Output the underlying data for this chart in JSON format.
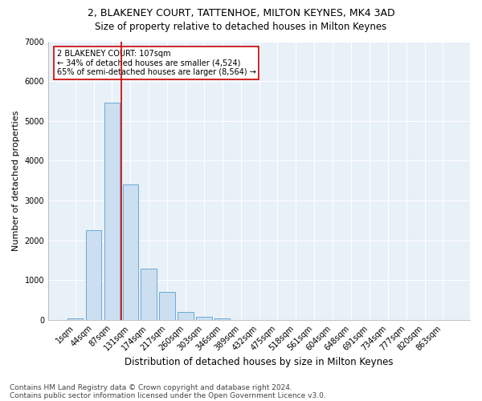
{
  "title1": "2, BLAKENEY COURT, TATTENHOE, MILTON KEYNES, MK4 3AD",
  "title2": "Size of property relative to detached houses in Milton Keynes",
  "xlabel": "Distribution of detached houses by size in Milton Keynes",
  "ylabel": "Number of detached properties",
  "footer1": "Contains HM Land Registry data © Crown copyright and database right 2024.",
  "footer2": "Contains public sector information licensed under the Open Government Licence v3.0.",
  "bar_labels": [
    "1sqm",
    "44sqm",
    "87sqm",
    "131sqm",
    "174sqm",
    "217sqm",
    "260sqm",
    "303sqm",
    "346sqm",
    "389sqm",
    "432sqm",
    "475sqm",
    "518sqm",
    "561sqm",
    "604sqm",
    "648sqm",
    "691sqm",
    "734sqm",
    "777sqm",
    "820sqm",
    "863sqm"
  ],
  "bar_values": [
    50,
    2250,
    5450,
    3400,
    1300,
    700,
    200,
    80,
    50,
    0,
    0,
    0,
    0,
    0,
    0,
    0,
    0,
    0,
    0,
    0,
    0
  ],
  "bar_color": "#ccdff0",
  "bar_edge_color": "#6aaad4",
  "background_color": "#e8f0f8",
  "grid_color": "#ffffff",
  "vline_x": 2.5,
  "vline_color": "#cc0000",
  "annotation_text": "2 BLAKENEY COURT: 107sqm\n← 34% of detached houses are smaller (4,524)\n65% of semi-detached houses are larger (8,564) →",
  "annotation_box_edge": "#cc0000",
  "ylim": [
    0,
    7000
  ],
  "yticks": [
    0,
    1000,
    2000,
    3000,
    4000,
    5000,
    6000,
    7000
  ],
  "title1_fontsize": 9,
  "title2_fontsize": 8.5,
  "xlabel_fontsize": 8.5,
  "ylabel_fontsize": 8,
  "tick_fontsize": 7,
  "footer_fontsize": 6.5,
  "annotation_fontsize": 7
}
